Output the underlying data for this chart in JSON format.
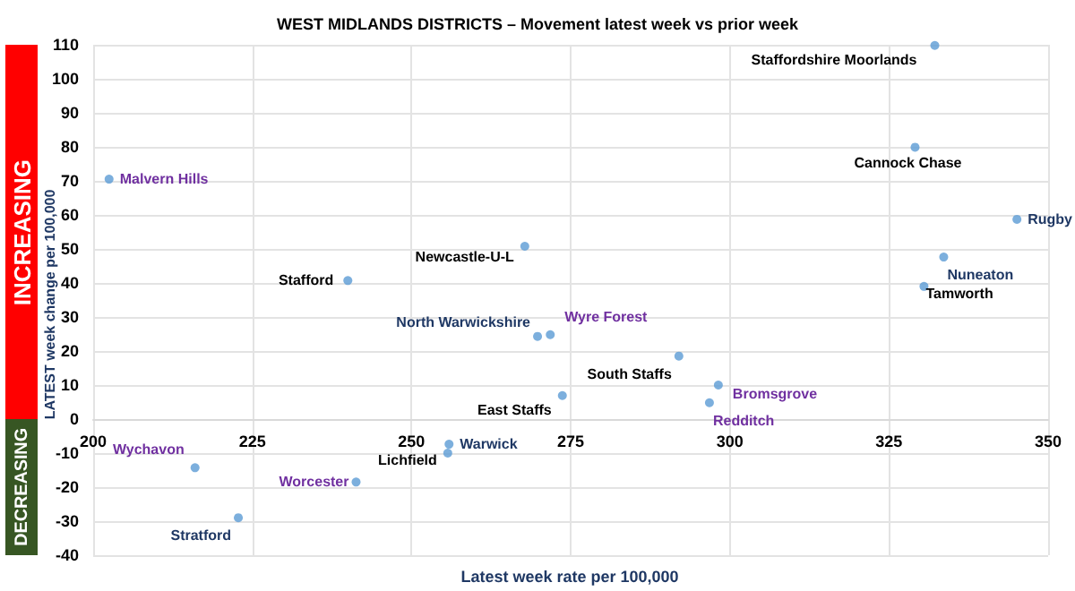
{
  "chart_data": {
    "type": "scatter",
    "title": "WEST MIDLANDS DISTRICTS – Movement latest week vs prior week",
    "xlabel": "Latest week rate per 100,000",
    "ylabel": "LATEST week change per 100,000",
    "xlim": [
      200,
      350
    ],
    "xticks": [
      200,
      225,
      250,
      275,
      300,
      325,
      350
    ],
    "ylim": [
      -40,
      110
    ],
    "yticks": [
      -40,
      -30,
      -20,
      -10,
      0,
      10,
      20,
      30,
      40,
      50,
      60,
      70,
      80,
      90,
      100,
      110
    ],
    "grid": true,
    "marker": "circle",
    "series": [
      {
        "color": "#5b9bd5",
        "x": [
          202.5,
          240,
          267.8,
          332.2,
          329.1,
          345.1,
          333.6,
          330.5,
          269.8,
          271.8,
          292,
          273.7,
          298.2,
          296.8,
          216,
          222.8,
          241.3,
          255.7,
          255.9
        ],
        "values": [
          70.5,
          40.7,
          50.8,
          109.8,
          79.9,
          58.7,
          47.6,
          39,
          24.3,
          24.8,
          18.5,
          6.9,
          10,
          4.8,
          -14.3,
          -29,
          -18.5,
          -10,
          -7.4
        ]
      }
    ],
    "annotations": [
      "INCREASING",
      "DECREASING",
      {
        "text": "Malvern Hills",
        "x": 202.5,
        "y": 70.5
      },
      {
        "text": "Stafford",
        "x": 240,
        "y": 40.7
      },
      {
        "text": "Newcastle-U-L",
        "x": 267.8,
        "y": 50.8
      },
      {
        "text": "Staffordshire Moorlands",
        "x": 332.2,
        "y": 109.8
      },
      {
        "text": "Cannock Chase",
        "x": 329.1,
        "y": 79.9
      },
      {
        "text": "Rugby",
        "x": 345.1,
        "y": 58.7
      },
      {
        "text": "Nuneaton",
        "x": 333.6,
        "y": 47.6
      },
      {
        "text": "Tamworth",
        "x": 330.5,
        "y": 39
      },
      {
        "text": "North Warwickshire",
        "x": 269.8,
        "y": 24.3
      },
      {
        "text": "Wyre Forest",
        "x": 271.8,
        "y": 24.8
      },
      {
        "text": "South Staffs",
        "x": 292,
        "y": 18.5
      },
      {
        "text": "East Staffs",
        "x": 273.7,
        "y": 6.9
      },
      {
        "text": "Bromsgrove",
        "x": 298.2,
        "y": 10
      },
      {
        "text": "Redditch",
        "x": 296.8,
        "y": 4.8
      },
      {
        "text": "Wychavon",
        "x": 216,
        "y": -14.3
      },
      {
        "text": "Stratford",
        "x": 222.8,
        "y": -29
      },
      {
        "text": "Worcester",
        "x": 241.3,
        "y": -18.5
      },
      {
        "text": "Lichfield",
        "x": 255.7,
        "y": -10
      },
      {
        "text": "Warwick",
        "x": 255.9,
        "y": -7.4
      }
    ]
  }
}
